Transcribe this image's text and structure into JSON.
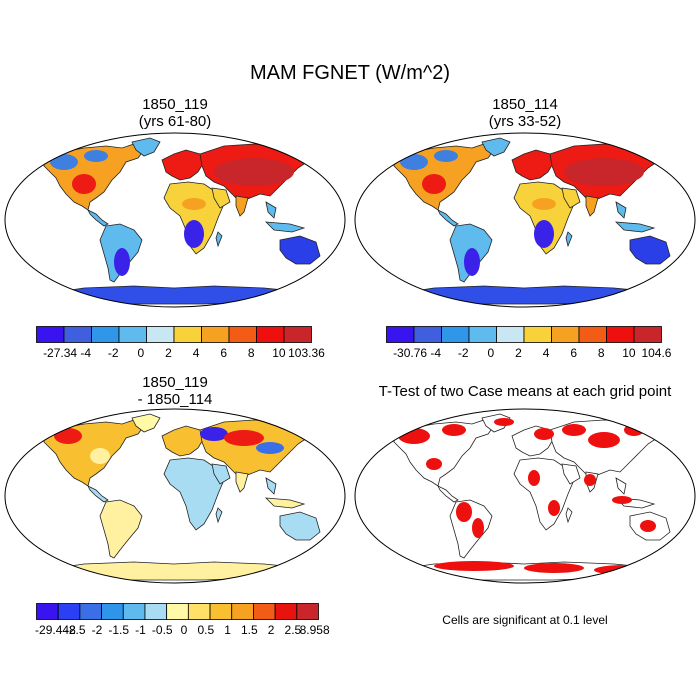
{
  "title": "MAM FGNET (W/m^2)",
  "panels": [
    {
      "title_lines": [
        "1850_119",
        "(yrs 61-80)"
      ]
    },
    {
      "title_lines": [
        "1850_114",
        "(yrs 33-52)"
      ]
    },
    {
      "title_lines": [
        "1850_119",
        "- 1850_114"
      ]
    },
    {
      "title_lines": [
        "T-Test of two Case means at each grid point"
      ]
    }
  ],
  "colorbars": [
    {
      "labels": [
        "-27.34",
        "-4",
        "-2",
        "0",
        "2",
        "4",
        "6",
        "8",
        "10",
        "103.36"
      ],
      "colors": [
        "#3a14f0",
        "#3f5fdf",
        "#2f96ea",
        "#5fbbee",
        "#c9e6f3",
        "#f8d23a",
        "#f7a123",
        "#f25c14",
        "#ee0f0f",
        "#c8262a"
      ]
    },
    {
      "labels": [
        "-30.76",
        "-4",
        "-2",
        "0",
        "2",
        "4",
        "6",
        "8",
        "10",
        "104.6"
      ],
      "colors": [
        "#3a14f0",
        "#3f5fdf",
        "#2f96ea",
        "#5fbbee",
        "#c9e6f3",
        "#f8d23a",
        "#f7a123",
        "#f25c14",
        "#ee0f0f",
        "#c8262a"
      ]
    },
    {
      "labels": [
        "-29.448",
        "-2.5",
        "-2",
        "-1.5",
        "-1",
        "-0.5",
        "0",
        "0.5",
        "1",
        "1.5",
        "2",
        "2.5",
        "8.958"
      ],
      "colors": [
        "#3a14f0",
        "#2b3ff5",
        "#3b6fe8",
        "#2e95ea",
        "#5fbbee",
        "#a7dcf3",
        "#fff9a8",
        "#ffe16a",
        "#f8c030",
        "#f7a123",
        "#f25c14",
        "#e8120f",
        "#c8262a"
      ]
    }
  ],
  "note": "Cells are significant at 0.1 level"
}
